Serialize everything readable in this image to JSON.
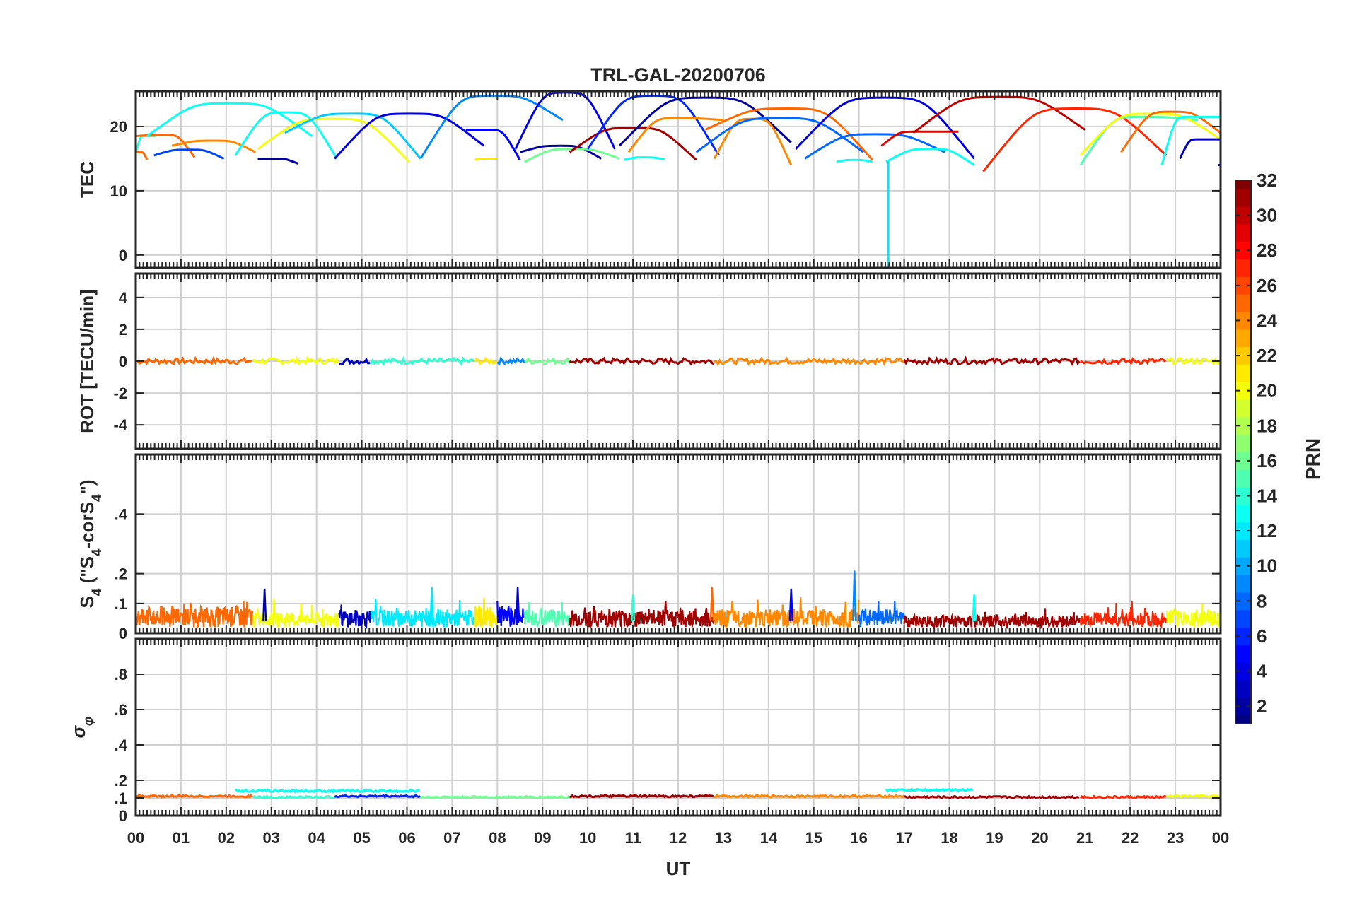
{
  "chart_data": {
    "type": "line",
    "title": "TRL-GAL-20200706",
    "xlabel": "UT",
    "x_tick_labels": [
      "00",
      "01",
      "02",
      "03",
      "04",
      "05",
      "06",
      "07",
      "08",
      "09",
      "10",
      "11",
      "12",
      "13",
      "14",
      "15",
      "16",
      "17",
      "18",
      "19",
      "20",
      "21",
      "22",
      "23",
      "00"
    ],
    "xlim_hours": [
      0,
      24
    ],
    "grid": true,
    "panels": [
      {
        "id": "tec",
        "ylabel": "TEC",
        "ylim": [
          -2,
          25.5
        ],
        "yticks": [
          0,
          10,
          20
        ],
        "arcs": [
          {
            "prn": 14,
            "start": 0.0,
            "end": 0.45,
            "ys": 16.0,
            "yp": 18.5,
            "ye": 18.5
          },
          {
            "prn": 25,
            "start": 0.0,
            "end": 1.3,
            "ys": 18.5,
            "yp": 18.7,
            "ye": 15.2
          },
          {
            "prn": 25,
            "start": 0.0,
            "end": 0.25,
            "ys": 16.0,
            "yp": 16.0,
            "ye": 14.8
          },
          {
            "prn": 7,
            "start": 0.4,
            "end": 1.95,
            "ys": 15.5,
            "yp": 16.4,
            "ye": 15.0
          },
          {
            "prn": 24,
            "start": 0.8,
            "end": 2.65,
            "ys": 17.0,
            "yp": 17.8,
            "ye": 16.0
          },
          {
            "prn": 13,
            "start": 0.25,
            "end": 3.9,
            "ys": 18.5,
            "yp": 23.6,
            "ye": 18.5
          },
          {
            "prn": 2,
            "start": 2.7,
            "end": 3.6,
            "ys": 15.0,
            "yp": 15.0,
            "ye": 14.2
          },
          {
            "prn": 13,
            "start": 2.2,
            "end": 4.45,
            "ys": 15.5,
            "yp": 22.2,
            "ye": 15.0
          },
          {
            "prn": 20,
            "start": 2.7,
            "end": 6.05,
            "ys": 16.5,
            "yp": 21.2,
            "ye": 14.5
          },
          {
            "prn": 11,
            "start": 3.3,
            "end": 6.3,
            "ys": 19.0,
            "yp": 22.0,
            "ye": 15.0
          },
          {
            "prn": 4,
            "start": 4.4,
            "end": 7.7,
            "ys": 15.0,
            "yp": 22.0,
            "ye": 17.0
          },
          {
            "prn": 9,
            "start": 6.3,
            "end": 9.45,
            "ys": 15.0,
            "yp": 24.8,
            "ye": 21.0
          },
          {
            "prn": 21,
            "start": 7.5,
            "end": 8.0,
            "ys": 14.8,
            "yp": 15.0,
            "ye": 15.0
          },
          {
            "prn": 5,
            "start": 7.3,
            "end": 8.5,
            "ys": 19.5,
            "yp": 19.5,
            "ye": 14.8
          },
          {
            "prn": 4,
            "start": 8.4,
            "end": 10.6,
            "ys": 16.5,
            "yp": 25.3,
            "ye": 16.5
          },
          {
            "prn": 2,
            "start": 8.5,
            "end": 10.3,
            "ys": 16.0,
            "yp": 17.0,
            "ye": 15.0
          },
          {
            "prn": 16,
            "start": 8.6,
            "end": 10.7,
            "ys": 14.5,
            "yp": 16.5,
            "ye": 15.0
          },
          {
            "prn": 31,
            "start": 9.6,
            "end": 12.4,
            "ys": 16.0,
            "yp": 19.8,
            "ye": 14.8
          },
          {
            "prn": 6,
            "start": 10.0,
            "end": 12.9,
            "ys": 16.5,
            "yp": 24.8,
            "ye": 15.5
          },
          {
            "prn": 13,
            "start": 10.8,
            "end": 11.7,
            "ys": 14.8,
            "yp": 15.2,
            "ye": 14.9
          },
          {
            "prn": 2,
            "start": 10.7,
            "end": 14.5,
            "ys": 17.0,
            "yp": 24.5,
            "ye": 17.5
          },
          {
            "prn": 24,
            "start": 10.9,
            "end": 13.0,
            "ys": 16.0,
            "yp": 21.3,
            "ye": 21.0
          },
          {
            "prn": 24,
            "start": 12.8,
            "end": 14.5,
            "ys": 15.0,
            "yp": 21.2,
            "ye": 14.0
          },
          {
            "prn": 8,
            "start": 12.4,
            "end": 16.1,
            "ys": 16.0,
            "yp": 21.3,
            "ye": 16.0
          },
          {
            "prn": 25,
            "start": 12.6,
            "end": 16.3,
            "ys": 19.5,
            "yp": 22.8,
            "ye": 14.8
          },
          {
            "prn": 8,
            "start": 14.8,
            "end": 17.9,
            "ys": 15.0,
            "yp": 18.8,
            "ye": 16.0
          },
          {
            "prn": 13,
            "start": 15.5,
            "end": 16.3,
            "ys": 14.5,
            "yp": 14.8,
            "ye": 14.5
          },
          {
            "prn": 4,
            "start": 14.6,
            "end": 18.55,
            "ys": 16.5,
            "yp": 24.5,
            "ye": 15.0
          },
          {
            "prn": 13,
            "start": 16.6,
            "end": 18.55,
            "ys": 14.5,
            "yp": 16.5,
            "ye": 14.0
          },
          {
            "prn": 29,
            "start": 16.5,
            "end": 18.2,
            "ys": 17.0,
            "yp": 19.2,
            "ye": 19.2
          },
          {
            "prn": 30,
            "start": 17.2,
            "end": 21.0,
            "ys": 19.0,
            "yp": 24.6,
            "ye": 19.5
          },
          {
            "prn": 27,
            "start": 18.75,
            "end": 22.8,
            "ys": 13.0,
            "yp": 22.8,
            "ye": 15.5
          },
          {
            "prn": 15,
            "start": 20.9,
            "end": 23.5,
            "ys": 14.0,
            "yp": 21.5,
            "ye": 21.0
          },
          {
            "prn": 20,
            "start": 20.9,
            "end": 24.0,
            "ys": 15.5,
            "yp": 22.0,
            "ye": 18.0
          },
          {
            "prn": 25,
            "start": 21.8,
            "end": 24.0,
            "ys": 16.0,
            "yp": 22.3,
            "ye": 19.0
          },
          {
            "prn": 13,
            "start": 22.7,
            "end": 24.0,
            "ys": 14.0,
            "yp": 21.5,
            "ye": 21.5
          },
          {
            "prn": 3,
            "start": 23.1,
            "end": 24.0,
            "ys": 15.0,
            "yp": 18.0,
            "ye": 18.0
          },
          {
            "prn": 3,
            "start": 23.95,
            "end": 24.0,
            "ys": 14.0,
            "yp": 14.0,
            "ye": 14.0
          }
        ],
        "spike": {
          "prn": 12,
          "x": 16.65,
          "from": 14.6,
          "to": -2.0
        }
      },
      {
        "id": "rot",
        "ylabel": "ROT [TECU/min]",
        "ylim": [
          -5.5,
          5.5
        ],
        "yticks": [
          -4,
          -2,
          0,
          2,
          4
        ],
        "bands": [
          {
            "prn": 25,
            "start": 0.0,
            "end": 2.6
          },
          {
            "prn": 20,
            "start": 2.6,
            "end": 4.5
          },
          {
            "prn": 3,
            "start": 4.5,
            "end": 5.2
          },
          {
            "prn": 14,
            "start": 5.2,
            "end": 7.5
          },
          {
            "prn": 21,
            "start": 7.5,
            "end": 8.0
          },
          {
            "prn": 9,
            "start": 8.0,
            "end": 8.6
          },
          {
            "prn": 16,
            "start": 8.6,
            "end": 9.6
          },
          {
            "prn": 31,
            "start": 9.6,
            "end": 12.8
          },
          {
            "prn": 24,
            "start": 12.8,
            "end": 17.0
          },
          {
            "prn": 31,
            "start": 17.0,
            "end": 20.9
          },
          {
            "prn": 27,
            "start": 20.9,
            "end": 22.8
          },
          {
            "prn": 20,
            "start": 22.8,
            "end": 24.0
          }
        ]
      },
      {
        "id": "s4",
        "ylabel": "S4 (\"S4-corS4\")",
        "ylim": [
          0,
          0.6
        ],
        "yticks": [
          0,
          0.1,
          0.2,
          0.4
        ],
        "bands": [
          {
            "prn": 25,
            "start": 0.0,
            "end": 2.6,
            "level": 0.07
          },
          {
            "prn": 20,
            "start": 2.6,
            "end": 4.5,
            "level": 0.05
          },
          {
            "prn": 3,
            "start": 4.5,
            "end": 5.2,
            "level": 0.06
          },
          {
            "prn": 12,
            "start": 5.2,
            "end": 7.5,
            "level": 0.06
          },
          {
            "prn": 21,
            "start": 7.5,
            "end": 8.0,
            "level": 0.07
          },
          {
            "prn": 5,
            "start": 8.0,
            "end": 8.6,
            "level": 0.07
          },
          {
            "prn": 15,
            "start": 8.6,
            "end": 9.6,
            "level": 0.06
          },
          {
            "prn": 31,
            "start": 9.6,
            "end": 12.8,
            "level": 0.06
          },
          {
            "prn": 24,
            "start": 12.8,
            "end": 16.0,
            "level": 0.06
          },
          {
            "prn": 8,
            "start": 16.0,
            "end": 17.0,
            "level": 0.06
          },
          {
            "prn": 31,
            "start": 17.0,
            "end": 20.9,
            "level": 0.04
          },
          {
            "prn": 27,
            "start": 20.9,
            "end": 22.8,
            "level": 0.05
          },
          {
            "prn": 20,
            "start": 22.8,
            "end": 24.0,
            "level": 0.06
          }
        ],
        "peaks": [
          {
            "prn": 2,
            "x": 2.85,
            "y": 0.15
          },
          {
            "prn": 12,
            "x": 6.55,
            "y": 0.155
          },
          {
            "prn": 4,
            "x": 8.45,
            "y": 0.155
          },
          {
            "prn": 14,
            "x": 11.0,
            "y": 0.13
          },
          {
            "prn": 25,
            "x": 12.75,
            "y": 0.155
          },
          {
            "prn": 5,
            "x": 14.5,
            "y": 0.15
          },
          {
            "prn": 9,
            "x": 15.9,
            "y": 0.21
          },
          {
            "prn": 13,
            "x": 18.55,
            "y": 0.13
          }
        ]
      },
      {
        "id": "sigphi",
        "ylabel": "σφ",
        "ylim": [
          0,
          1.0
        ],
        "yticks": [
          0,
          0.1,
          0.2,
          0.4,
          0.6,
          0.8
        ],
        "bands": [
          {
            "prn": 25,
            "start": 0.0,
            "end": 2.6,
            "level": 0.11
          },
          {
            "prn": 14,
            "start": 2.6,
            "end": 4.4,
            "level": 0.105
          },
          {
            "prn": 6,
            "start": 4.4,
            "end": 6.3,
            "level": 0.11
          },
          {
            "prn": 16,
            "start": 6.3,
            "end": 9.6,
            "level": 0.105
          },
          {
            "prn": 31,
            "start": 9.6,
            "end": 12.8,
            "level": 0.11
          },
          {
            "prn": 24,
            "start": 12.8,
            "end": 17.0,
            "level": 0.11
          },
          {
            "prn": 31,
            "start": 17.0,
            "end": 20.9,
            "level": 0.105
          },
          {
            "prn": 27,
            "start": 20.9,
            "end": 22.8,
            "level": 0.105
          },
          {
            "prn": 20,
            "start": 22.8,
            "end": 24.0,
            "level": 0.11
          }
        ],
        "raised": [
          {
            "prn": 13,
            "start": 2.2,
            "end": 6.3,
            "level": 0.14
          },
          {
            "prn": 13,
            "start": 16.6,
            "end": 18.55,
            "level": 0.145
          }
        ]
      }
    ],
    "colorbar": {
      "label": "PRN",
      "range": [
        1,
        32
      ],
      "ticks": [
        2,
        4,
        6,
        8,
        10,
        12,
        14,
        16,
        18,
        20,
        22,
        24,
        26,
        28,
        30,
        32
      ],
      "colormap": "jet"
    }
  }
}
